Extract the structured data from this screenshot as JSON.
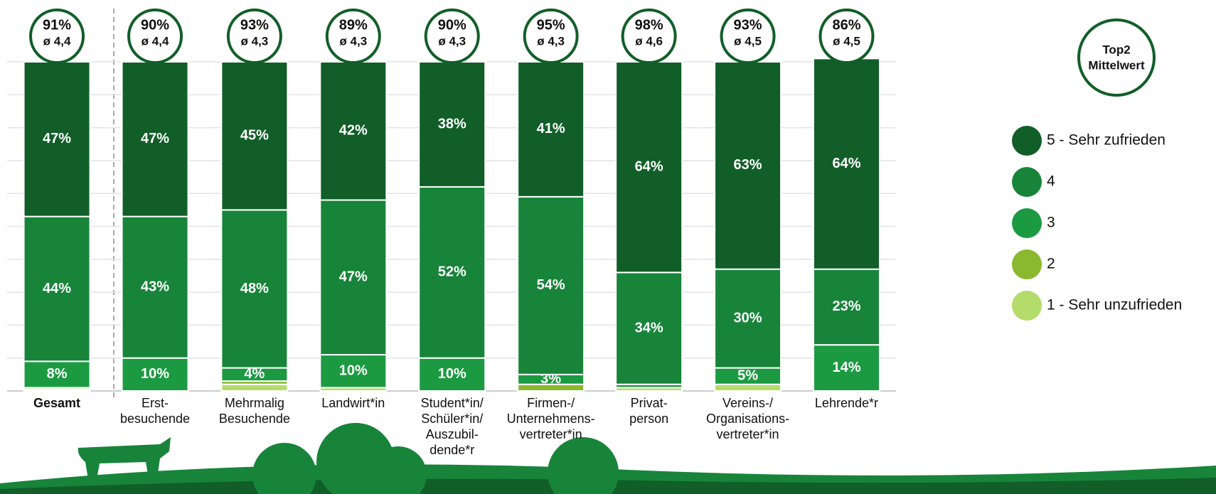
{
  "chart_data": {
    "type": "stacked_bar",
    "categories": [
      "Gesamt",
      "Erst-\nbesuchende",
      "Mehrmalig\nBesuchende",
      "Landwirt*in",
      "Student*in/\nSchüler*in/\nAuszubil-\ndende*r",
      "Firmen-/\nUnternehmens-\nvertreter*in",
      "Privat-\nperson",
      "Vereins-/\nOrganisations-\nvertreter*in",
      "Lehrende*r"
    ],
    "series": [
      {
        "name": "5 - Sehr zufrieden",
        "color": "#115e28",
        "values": [
          47,
          47,
          45,
          42,
          38,
          41,
          64,
          63,
          64
        ],
        "value_labels": [
          "47%",
          "47%",
          "45%",
          "42%",
          "38%",
          "41%",
          "64%",
          "63%",
          "64%"
        ]
      },
      {
        "name": "4",
        "color": "#17843a",
        "values": [
          44,
          43,
          48,
          47,
          52,
          54,
          34,
          30,
          23
        ],
        "value_labels": [
          "44%",
          "43%",
          "48%",
          "47%",
          "52%",
          "54%",
          "34%",
          "30%",
          "23%"
        ]
      },
      {
        "name": "3",
        "color": "#1c9a42",
        "values": [
          8,
          10,
          4,
          10,
          10,
          3,
          1,
          5,
          14
        ],
        "value_labels": [
          "8%",
          "10%",
          "4%",
          "10%",
          "10%",
          "3%",
          null,
          "5%",
          "14%"
        ]
      },
      {
        "name": "2",
        "color": "#8ab82e",
        "values": [
          0.5,
          0,
          1,
          0,
          0,
          2,
          0,
          0,
          0
        ],
        "value_labels": [
          null,
          null,
          null,
          null,
          null,
          null,
          null,
          null,
          null
        ]
      },
      {
        "name": "1 - Sehr unzufrieden",
        "color": "#b3dc6a",
        "values": [
          0.5,
          0,
          2,
          1,
          0,
          0,
          1,
          2,
          0
        ],
        "value_labels": [
          null,
          null,
          null,
          null,
          null,
          null,
          null,
          null,
          null
        ]
      }
    ],
    "top2": [
      "91%",
      "90%",
      "93%",
      "89%",
      "90%",
      "95%",
      "98%",
      "93%",
      "86%"
    ],
    "mean": [
      "ø 4,4",
      "ø 4,4",
      "ø 4,3",
      "ø 4,3",
      "ø 4,3",
      "ø 4,3",
      "ø 4,6",
      "ø 4,5",
      "ø 4,5"
    ],
    "badge_legend": [
      "Top2",
      "Mittelwert"
    ],
    "ylim": [
      0,
      100
    ],
    "yticks": [
      0,
      10,
      20,
      30,
      40,
      50,
      60,
      70,
      80,
      90,
      100
    ],
    "grid": true
  }
}
